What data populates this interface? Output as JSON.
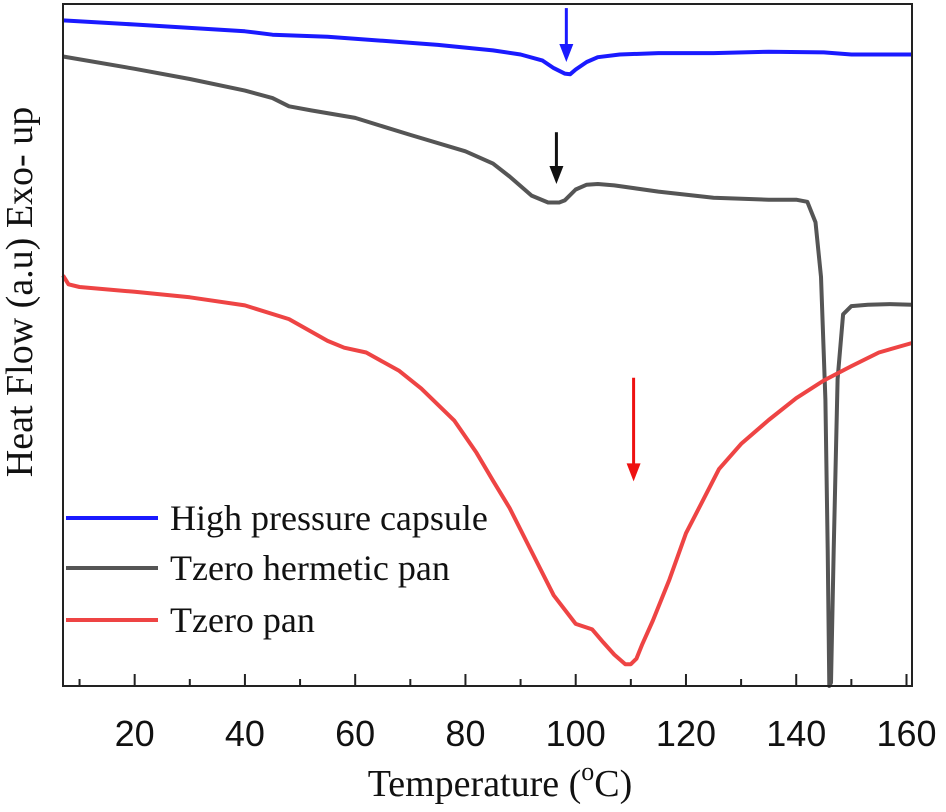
{
  "chart_data": {
    "type": "line",
    "xlabel": "Temperature (",
    "xlabel_sup": "o",
    "xlabel_unit": "C)",
    "ylabel": "Heat Flow (a.u) Exo- up",
    "xlim": [
      7,
      161
    ],
    "ylim": [
      0,
      100
    ],
    "x_ticks": [
      20,
      40,
      60,
      80,
      100,
      120,
      140,
      160
    ],
    "x_tick_labels": [
      "20",
      "40",
      "60",
      "80",
      "100",
      "120",
      "140",
      "160"
    ],
    "grid": false,
    "legend_position": "bottom-left",
    "series": [
      {
        "name": "High pressure capsule",
        "color": "#1a1aff",
        "x": [
          7,
          20,
          30,
          40,
          45,
          55,
          65,
          75,
          85,
          90,
          94,
          96,
          98,
          99,
          100,
          102,
          104,
          108,
          115,
          125,
          135,
          145,
          150,
          155,
          161
        ],
        "y": [
          97.6,
          97.0,
          96.5,
          96.0,
          95.5,
          95.2,
          94.6,
          94.0,
          93.2,
          92.6,
          91.7,
          90.6,
          89.8,
          89.7,
          90.4,
          91.5,
          92.2,
          92.6,
          92.8,
          92.8,
          93.0,
          92.9,
          92.6,
          92.6,
          92.6
        ]
      },
      {
        "name": "Tzero hermetic pan",
        "color": "#555555",
        "x": [
          7,
          20,
          30,
          40,
          45,
          48,
          52,
          60,
          70,
          80,
          85,
          88,
          92,
          95,
          97,
          98,
          100,
          102,
          104,
          107,
          115,
          125,
          135,
          140,
          142,
          143.5,
          144.5,
          145.3,
          145.7,
          146,
          146.3,
          146.8,
          147.5,
          148.5,
          150,
          153,
          157,
          161
        ],
        "y": [
          92.3,
          90.5,
          89.0,
          87.3,
          86.2,
          85.0,
          84.4,
          83.3,
          80.8,
          78.4,
          76.6,
          74.7,
          71.9,
          70.9,
          70.9,
          71.2,
          72.8,
          73.5,
          73.6,
          73.4,
          72.5,
          71.6,
          71.3,
          71.3,
          71.0,
          68.0,
          60.0,
          42.0,
          20.0,
          0.0,
          0.5,
          20.0,
          45.0,
          54.5,
          55.7,
          55.9,
          56.0,
          55.9
        ]
      },
      {
        "name": "Tzero pan",
        "color": "#ee4444",
        "x": [
          7,
          8,
          10,
          20,
          30,
          40,
          48,
          55,
          58,
          62,
          68,
          72,
          78,
          82,
          85,
          88,
          92,
          96,
          100,
          103,
          105,
          107,
          109,
          110,
          111,
          112,
          114,
          117,
          120,
          123,
          126,
          130,
          135,
          140,
          145,
          150,
          155,
          161
        ],
        "y": [
          60.2,
          58.9,
          58.5,
          57.8,
          57.0,
          55.8,
          53.8,
          50.6,
          49.6,
          48.9,
          46.2,
          43.6,
          38.9,
          34.2,
          30.1,
          26.1,
          19.7,
          13.3,
          9.1,
          8.3,
          6.4,
          4.6,
          3.2,
          3.2,
          4.0,
          6.0,
          9.6,
          15.6,
          22.4,
          27.1,
          31.8,
          35.5,
          39.0,
          42.2,
          44.8,
          46.9,
          48.9,
          50.3
        ]
      }
    ],
    "annotations": [
      {
        "type": "arrow",
        "color": "#1a1aff",
        "x": 98.3,
        "y_from": 99.4,
        "y_to": 91.5
      },
      {
        "type": "arrow",
        "color": "#111111",
        "x": 96.5,
        "y_from": 81.2,
        "y_to": 73.6
      },
      {
        "type": "arrow",
        "color": "#ee1111",
        "x": 110.5,
        "y_from": 45.2,
        "y_to": 30.0
      }
    ]
  }
}
